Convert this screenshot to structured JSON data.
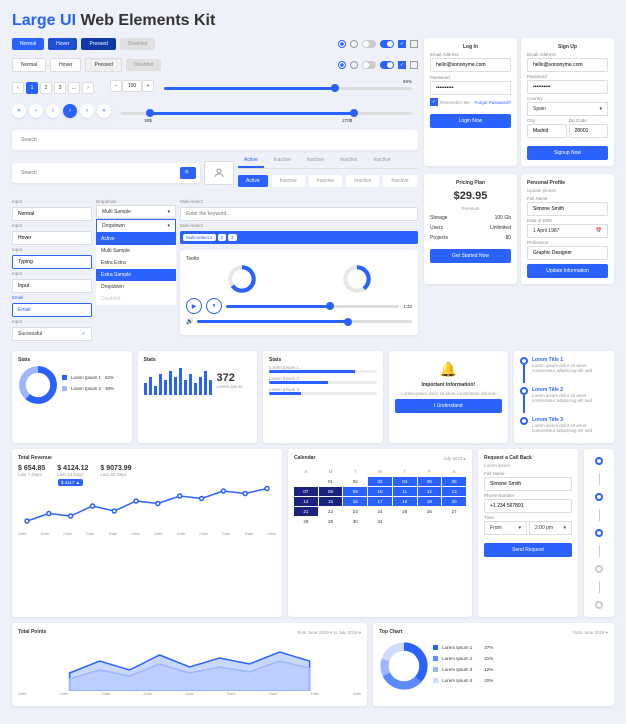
{
  "title": {
    "line1": "Large UI",
    "line2": "Web Elements Kit"
  },
  "colors": {
    "primary": "#2962ff",
    "primary_dark": "#1e4fd6",
    "primary_darker": "#0d3aa8",
    "muted": "#999",
    "bg": "#eef1f9",
    "card": "#ffffff",
    "border": "#ddd"
  },
  "buttons": {
    "normal": "Normal",
    "hover": "Hover",
    "pressed": "Pressed",
    "disabled": "Disabled"
  },
  "pagination": {
    "pages": [
      "1",
      "2",
      "3"
    ],
    "ellipsis": "...",
    "active": 1
  },
  "stepper": {
    "minus": "−",
    "plus": "+",
    "value": "100"
  },
  "slider1": {
    "pct": 69,
    "label": "69%"
  },
  "slider2": {
    "min": "30$",
    "max": "270$"
  },
  "search": {
    "placeholder": "Search"
  },
  "tabs": {
    "items": [
      "Active",
      "Inactive",
      "Inactive",
      "Inactive",
      "Inactive"
    ],
    "active": 0
  },
  "inputs": {
    "labels": [
      "Input",
      "Input",
      "Input",
      "Input",
      "Email",
      "Input"
    ],
    "vals": [
      "Normal",
      "Hover",
      "Typing",
      "Input",
      "Email",
      "Successful"
    ]
  },
  "dropdown": {
    "label": "Dropdown",
    "items": [
      "Multi Sample",
      "Dropdown",
      "Active"
    ],
    "sub": [
      "Multi Sample",
      "Extra Extra",
      "Extra Sample",
      "Dropdown",
      "Disabled"
    ]
  },
  "multiselect": {
    "label": "Multi-select",
    "placeholder": "Enter the keyword...",
    "chips": [
      "Multi-select 1",
      "2",
      "3"
    ]
  },
  "toolto": {
    "title": "Toolto",
    "donut_pcts": [
      65,
      40
    ],
    "progress": 60,
    "volume": 70
  },
  "login": {
    "title": "Log In",
    "email_label": "Email Address",
    "email": "hello@sononyme.com",
    "pass_label": "Password",
    "pass": "••••••••••",
    "remember": "Remember Me",
    "forgot": "Forgot Password?",
    "button": "Login Now"
  },
  "signup": {
    "title": "Sign Up",
    "email_label": "Email Address",
    "email": "hello@sononyme.com",
    "pass_label": "Password",
    "pass": "••••••••••",
    "country_label": "Country",
    "country": "Spain",
    "city_label": "City",
    "city": "Madrid",
    "zip_label": "Zip Code",
    "zip": "28001",
    "button": "Signup Now"
  },
  "pricing": {
    "title": "Pricing Plan",
    "price": "$29.95",
    "period": "Premium",
    "rows": [
      [
        "Storage",
        "100 Gb"
      ],
      [
        "Users",
        "Unlimited"
      ],
      [
        "Projects",
        "80"
      ]
    ],
    "button": "Get Started Now"
  },
  "profile": {
    "title": "Personal Profile",
    "sub": "Update please",
    "name_label": "Full Name",
    "name": "Simone Smith",
    "dob_label": "Date of Birth",
    "dob": "1 April 1987",
    "prof_label": "Profession",
    "prof": "Graphic Designer",
    "button": "Update Information"
  },
  "stats1": {
    "title": "Stats",
    "donut": {
      "type": "donut",
      "values": [
        62,
        38
      ],
      "colors": [
        "#2962ff",
        "#9db7ff"
      ]
    },
    "legend": [
      [
        "Lorem Ipsum 1",
        "62%"
      ],
      [
        "Lorem Ipsum 2",
        "38%"
      ]
    ]
  },
  "stats2": {
    "title": "Stats",
    "bars": {
      "type": "bar",
      "values": [
        4,
        6,
        3,
        7,
        5,
        8,
        6,
        9,
        5,
        7,
        4,
        6,
        8,
        5
      ],
      "color": "#2962ff",
      "max": 10
    },
    "value": "372",
    "sub": "Lorem ipsum"
  },
  "stats3": {
    "title": "Stats",
    "items": [
      [
        "Lorem Ipsum 1",
        80
      ],
      [
        "Lorem Ipsum 2",
        55
      ],
      [
        "Lorem Ipsum 3",
        30
      ]
    ]
  },
  "revenue": {
    "title": "Total Revenue",
    "metrics": [
      [
        "$ 654.85",
        "Last 7 Days"
      ],
      [
        "$ 4124.12",
        "Last 14 Days"
      ],
      [
        "$ 9073.99",
        "Last 30 Days"
      ]
    ],
    "callout": "$ 4117 ▲",
    "line": {
      "type": "line",
      "points": [
        20,
        35,
        30,
        50,
        40,
        60,
        55,
        70,
        65,
        80,
        75,
        85
      ],
      "color": "#2962ff",
      "marker": "circle"
    },
    "xlabels": [
      "Date",
      "Date",
      "Date",
      "Date",
      "Date",
      "Date",
      "Date",
      "Date",
      "Date",
      "Date",
      "Date",
      "Date"
    ]
  },
  "calendar": {
    "title": "Calendar",
    "month": "July 2019 ▸",
    "days": [
      "S",
      "M",
      "T",
      "W",
      "T",
      "F",
      "S"
    ],
    "weeks": [
      [
        "",
        "01",
        "02",
        "03",
        "04",
        "05",
        "06"
      ],
      [
        "07",
        "08",
        "09",
        "10",
        "11",
        "12",
        "13"
      ],
      [
        "14",
        "15",
        "16",
        "17",
        "18",
        "19",
        "20"
      ],
      [
        "21",
        "22",
        "23",
        "24",
        "25",
        "26",
        "27"
      ],
      [
        "28",
        "29",
        "30",
        "31",
        "",
        "",
        ""
      ]
    ],
    "selected": [
      "03",
      "04",
      "05",
      "06",
      "09",
      "10",
      "11",
      "12",
      "13",
      "16",
      "17",
      "18",
      "19",
      "20"
    ],
    "dark": [
      "07",
      "08",
      "14",
      "15",
      "21"
    ]
  },
  "info": {
    "title": "Important Information!",
    "body": "Lorem ipsum dolor sit amet consectetur elit sed",
    "button": "I Understand"
  },
  "callback": {
    "title": "Request a Call Back",
    "sub": "Lorem ipsum",
    "name_label": "Full Name",
    "name": "Simone Smith",
    "phone_label": "Phone Number",
    "phone": "+1 234 567891",
    "time_label": "Time",
    "from": "From",
    "to": "2:00 pm",
    "button": "Send Request"
  },
  "timeline": {
    "items": [
      {
        "title": "Lorem Title 1",
        "body": "Lorem ipsum dolor sit amet consectetur adipiscing elit sed"
      },
      {
        "title": "Lorem Title 2",
        "body": "Lorem ipsum dolor sit amet consectetur adipiscing elit sed"
      },
      {
        "title": "Lorem Title 3",
        "body": "Lorem ipsum dolor sit amet consectetur adipiscing elit sed"
      }
    ]
  },
  "points": {
    "title": "Total Points",
    "range": "from June 2019 ▾  to July 2019 ▾",
    "area": {
      "type": "area",
      "series1": [
        30,
        50,
        35,
        60,
        40,
        55,
        45,
        65,
        50
      ],
      "series2": [
        20,
        35,
        25,
        45,
        30,
        40,
        32,
        50,
        38
      ],
      "colors": [
        "#2962ff",
        "#9db7ff"
      ]
    },
    "xlabels": [
      "Date",
      "Date",
      "Date",
      "Date",
      "Date",
      "Date",
      "Date",
      "Date",
      "Date"
    ]
  },
  "topchart": {
    "title": "Top Chart",
    "range": "from June 2019 ▾",
    "donut": {
      "type": "donut",
      "values": [
        37,
        31,
        12,
        20
      ],
      "colors": [
        "#2962ff",
        "#5b8bff",
        "#9db7ff",
        "#d0dcff"
      ]
    },
    "legend": [
      [
        "Lorem Ipsum 1",
        "37%"
      ],
      [
        "Lorem Ipsum 2",
        "31%"
      ],
      [
        "Lorem Ipsum 3",
        "12%"
      ],
      [
        "Lorem Ipsum 4",
        "20%"
      ]
    ]
  },
  "timeline2": {
    "dots": 5
  }
}
